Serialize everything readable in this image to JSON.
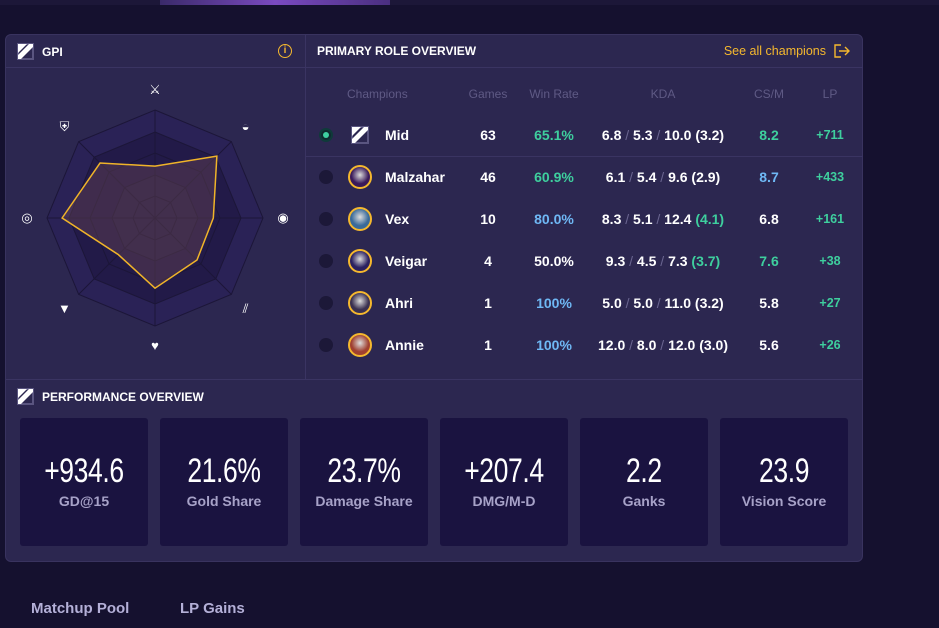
{
  "gpi": {
    "title": "GPI",
    "info_icon": "info-icon",
    "axes": [
      {
        "icon": "crossed-swords-icon",
        "glyph": "⚔"
      },
      {
        "icon": "coins-icon",
        "glyph": "◒"
      },
      {
        "icon": "eye-icon",
        "glyph": "◉"
      },
      {
        "icon": "slashes-icon",
        "glyph": "⫽"
      },
      {
        "icon": "shield-heart-icon",
        "glyph": "♥"
      },
      {
        "icon": "flag-icon",
        "glyph": "▼"
      },
      {
        "icon": "target-icon",
        "glyph": "◎"
      },
      {
        "icon": "helmet-icon",
        "glyph": "⛨"
      }
    ],
    "values": [
      0.48,
      0.81,
      0.54,
      0.55,
      0.65,
      0.48,
      0.86,
      0.72
    ],
    "line_color": "#f0b429"
  },
  "role": {
    "title": "PRIMARY ROLE OVERVIEW",
    "see_all": "See all champions",
    "columns": [
      "Champions",
      "Games",
      "Win Rate",
      "KDA",
      "CS/M",
      "LP"
    ],
    "rows": [
      {
        "name": "Mid",
        "games": "63",
        "winrate": "65.1%",
        "wr_color": "green",
        "k": "6.8",
        "d": "5.3",
        "a": "10.0",
        "ratio": "(3.2)",
        "ratio_color": "",
        "csm": "8.2",
        "cs_color": "green",
        "lp": "+711",
        "selected": true,
        "avatar": "#fff"
      },
      {
        "name": "Malzahar",
        "games": "46",
        "winrate": "60.9%",
        "wr_color": "green",
        "k": "6.1",
        "d": "5.4",
        "a": "9.6",
        "ratio": "(2.9)",
        "ratio_color": "",
        "csm": "8.7",
        "cs_color": "blue",
        "lp": "+433",
        "avatar": "#3a1a5a"
      },
      {
        "name": "Vex",
        "games": "10",
        "winrate": "80.0%",
        "wr_color": "blue",
        "k": "8.3",
        "d": "5.1",
        "a": "12.4",
        "ratio": "(4.1)",
        "ratio_color": "green",
        "csm": "6.8",
        "cs_color": "",
        "lp": "+161",
        "avatar": "#3a6a9a"
      },
      {
        "name": "Veigar",
        "games": "4",
        "winrate": "50.0%",
        "wr_color": "",
        "k": "9.3",
        "d": "4.5",
        "a": "7.3",
        "ratio": "(3.7)",
        "ratio_color": "green",
        "csm": "7.6",
        "cs_color": "green",
        "lp": "+38",
        "avatar": "#2a2060"
      },
      {
        "name": "Ahri",
        "games": "1",
        "winrate": "100%",
        "wr_color": "blue",
        "k": "5.0",
        "d": "5.0",
        "a": "11.0",
        "ratio": "(3.2)",
        "ratio_color": "",
        "csm": "5.8",
        "cs_color": "",
        "lp": "+27",
        "avatar": "#3a3050"
      },
      {
        "name": "Annie",
        "games": "1",
        "winrate": "100%",
        "wr_color": "blue",
        "k": "12.0",
        "d": "8.0",
        "a": "12.0",
        "ratio": "(3.0)",
        "ratio_color": "",
        "csm": "5.6",
        "cs_color": "",
        "lp": "+26",
        "avatar": "#a04030"
      }
    ]
  },
  "performance": {
    "title": "PERFORMANCE OVERVIEW",
    "cards": [
      {
        "value": "+934.6",
        "label": "GD@15"
      },
      {
        "value": "21.6%",
        "label": "Gold Share"
      },
      {
        "value": "23.7%",
        "label": "Damage Share"
      },
      {
        "value": "+207.4",
        "label": "DMG/M-D"
      },
      {
        "value": "2.2",
        "label": "Ganks"
      },
      {
        "value": "23.9",
        "label": "Vision Score"
      }
    ]
  },
  "tabs": [
    "Matchup Pool",
    "LP Gains"
  ],
  "colors": {
    "accent": "#f5b82e",
    "green": "#3ecf9e",
    "blue": "#6fb8f5"
  }
}
